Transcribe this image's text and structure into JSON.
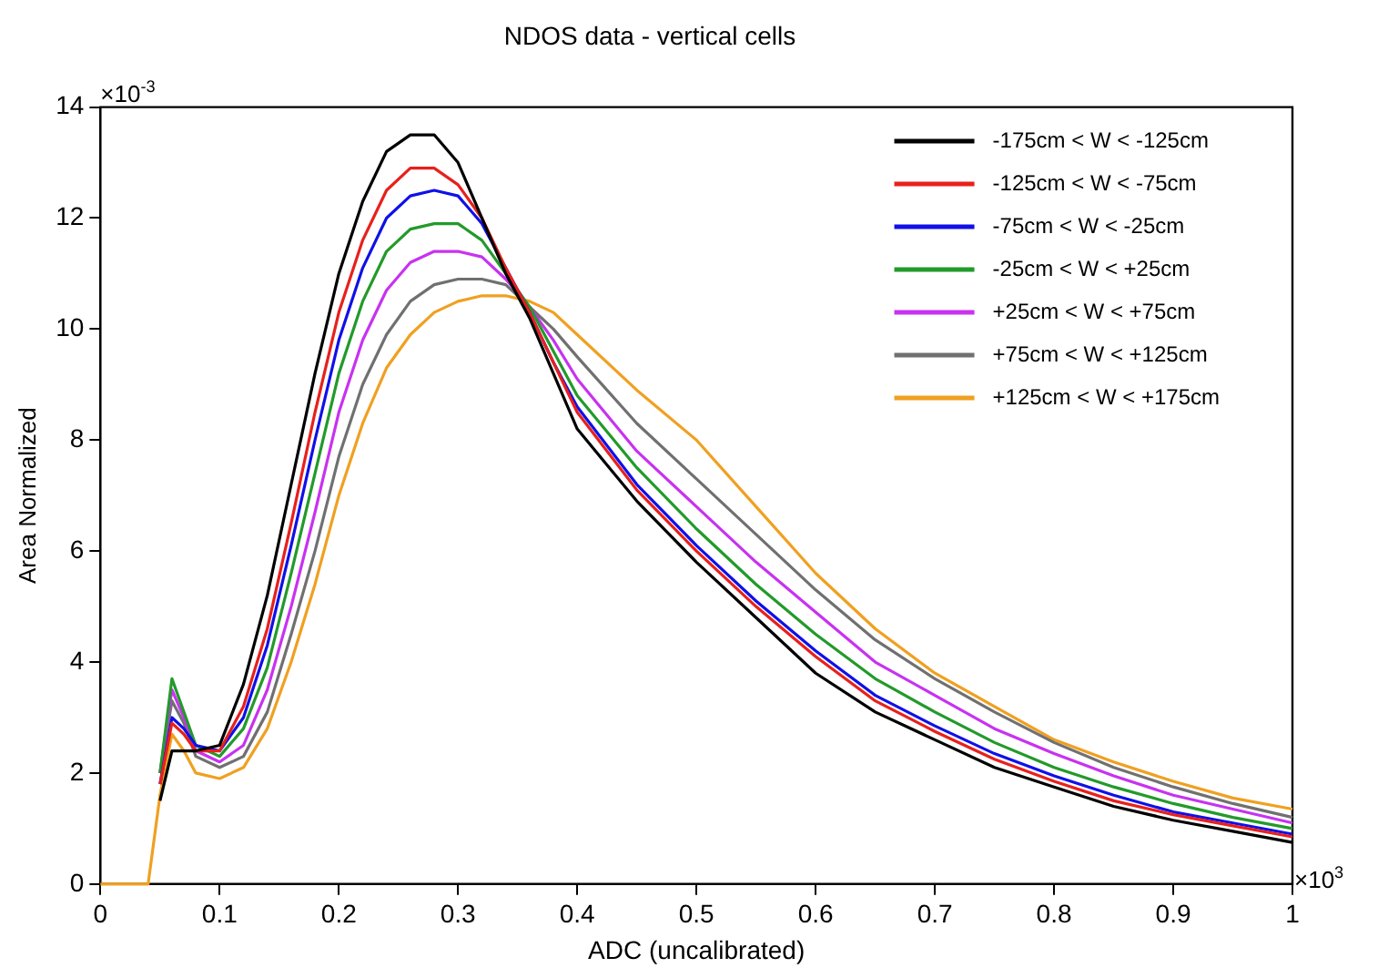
{
  "chart_data": {
    "type": "line",
    "title": "NDOS data - vertical cells",
    "xlabel": "ADC (uncalibrated)",
    "ylabel": "Area Normalized",
    "annotations": [
      "×10$^{-3}$",
      "×10$^{3}$"
    ],
    "x": [
      0,
      0.04,
      0.05,
      0.06,
      0.07,
      0.08,
      0.1,
      0.12,
      0.14,
      0.16,
      0.18,
      0.2,
      0.22,
      0.24,
      0.26,
      0.28,
      0.3,
      0.32,
      0.34,
      0.36,
      0.38,
      0.4,
      0.45,
      0.5,
      0.55,
      0.6,
      0.65,
      0.7,
      0.75,
      0.8,
      0.85,
      0.9,
      0.95,
      1.0
    ],
    "series": [
      {
        "name": "-175cm < W < -125cm",
        "color": "#000000",
        "values": [
          null,
          null,
          1.5,
          2.4,
          2.4,
          2.4,
          2.5,
          3.6,
          5.2,
          7.2,
          9.2,
          11.0,
          12.3,
          13.2,
          13.5,
          13.5,
          13.0,
          12.0,
          11.0,
          10.2,
          9.2,
          8.2,
          6.9,
          5.8,
          4.8,
          3.8,
          3.1,
          2.6,
          2.1,
          1.75,
          1.4,
          1.15,
          0.95,
          0.75
        ]
      },
      {
        "name": "-125cm < W < -75cm",
        "color": "#e8201c",
        "values": [
          null,
          null,
          1.8,
          2.9,
          2.7,
          2.4,
          2.4,
          3.2,
          4.6,
          6.5,
          8.5,
          10.3,
          11.6,
          12.5,
          12.9,
          12.9,
          12.6,
          12.0,
          11.1,
          10.3,
          9.4,
          8.5,
          7.1,
          6.0,
          5.0,
          4.1,
          3.3,
          2.75,
          2.25,
          1.85,
          1.5,
          1.25,
          1.05,
          0.85
        ]
      },
      {
        "name": "-75cm < W < -25cm",
        "color": "#1010e8",
        "values": [
          null,
          null,
          1.8,
          3.0,
          2.8,
          2.5,
          2.4,
          3.0,
          4.3,
          6.1,
          8.0,
          9.8,
          11.1,
          12.0,
          12.4,
          12.5,
          12.4,
          11.9,
          11.1,
          10.3,
          9.4,
          8.6,
          7.2,
          6.1,
          5.1,
          4.2,
          3.4,
          2.85,
          2.35,
          1.95,
          1.6,
          1.3,
          1.1,
          0.9
        ]
      },
      {
        "name": "-25cm < W < +25cm",
        "color": "#229a2a",
        "values": [
          null,
          null,
          2.0,
          3.7,
          3.1,
          2.5,
          2.3,
          2.8,
          3.9,
          5.6,
          7.4,
          9.2,
          10.5,
          11.4,
          11.8,
          11.9,
          11.9,
          11.6,
          11.0,
          10.4,
          9.6,
          8.8,
          7.5,
          6.4,
          5.4,
          4.5,
          3.7,
          3.1,
          2.55,
          2.1,
          1.75,
          1.45,
          1.2,
          1.0
        ]
      },
      {
        "name": "+25cm < W < +75cm",
        "color": "#c832f0",
        "values": [
          null,
          null,
          2.0,
          3.5,
          3.0,
          2.4,
          2.2,
          2.5,
          3.5,
          5.0,
          6.7,
          8.5,
          9.8,
          10.7,
          11.2,
          11.4,
          11.4,
          11.3,
          10.9,
          10.4,
          9.8,
          9.1,
          7.8,
          6.8,
          5.8,
          4.9,
          4.0,
          3.4,
          2.8,
          2.35,
          1.95,
          1.6,
          1.35,
          1.1
        ]
      },
      {
        "name": "+75cm < W < +125cm",
        "color": "#707070",
        "values": [
          null,
          null,
          2.0,
          3.3,
          2.9,
          2.3,
          2.1,
          2.3,
          3.1,
          4.5,
          6.0,
          7.7,
          9.0,
          9.9,
          10.5,
          10.8,
          10.9,
          10.9,
          10.8,
          10.4,
          10.0,
          9.5,
          8.3,
          7.3,
          6.3,
          5.3,
          4.4,
          3.7,
          3.1,
          2.55,
          2.1,
          1.75,
          1.45,
          1.2
        ]
      },
      {
        "name": "+125cm < W < +175cm",
        "color": "#f0a020",
        "values": [
          0,
          0,
          1.6,
          2.7,
          2.4,
          2.0,
          1.9,
          2.1,
          2.8,
          4.0,
          5.4,
          7.0,
          8.3,
          9.3,
          9.9,
          10.3,
          10.5,
          10.6,
          10.6,
          10.5,
          10.3,
          9.9,
          8.9,
          8.0,
          6.8,
          5.6,
          4.6,
          3.8,
          3.2,
          2.6,
          2.2,
          1.85,
          1.55,
          1.35
        ]
      }
    ],
    "xlim": [
      0,
      1
    ],
    "xticks": [
      0,
      0.1,
      0.2,
      0.3,
      0.4,
      0.5,
      0.6,
      0.7,
      0.8,
      0.9,
      1
    ],
    "ylim": [
      0,
      14
    ],
    "yticks": [
      0,
      2,
      4,
      6,
      8,
      10,
      12,
      14
    ],
    "grid": false,
    "legend": "top right",
    "marker": "none",
    "line_style": "solid"
  }
}
